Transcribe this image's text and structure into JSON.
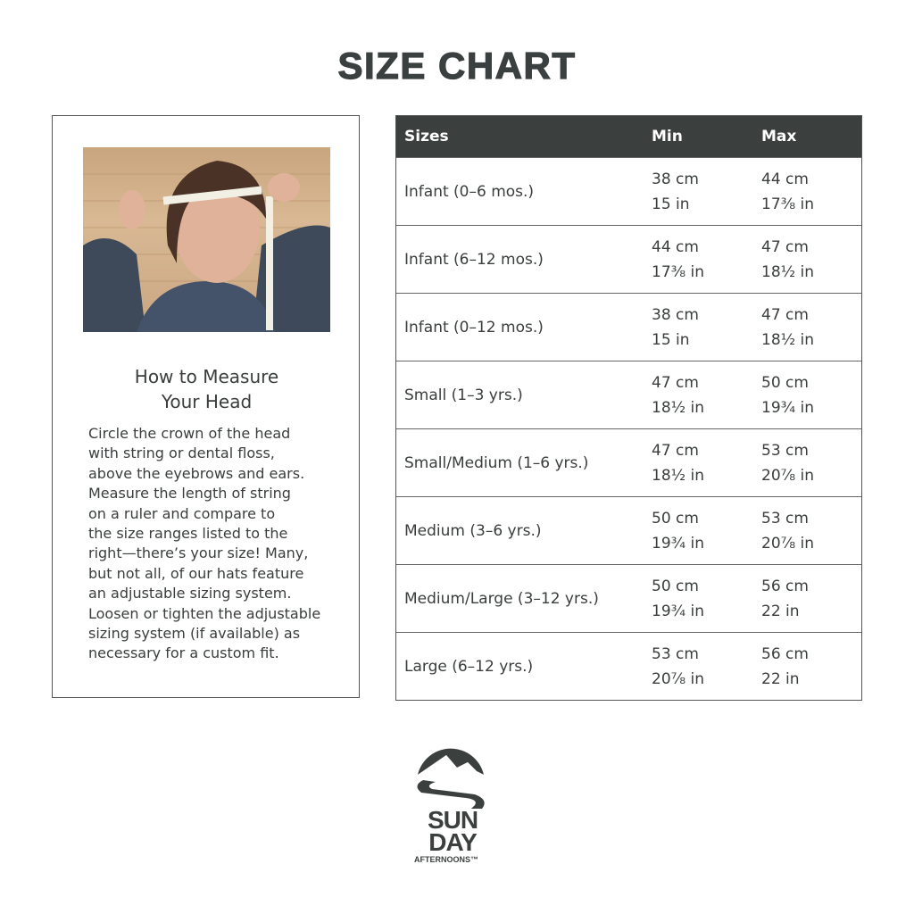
{
  "title": "SIZE CHART",
  "guide": {
    "heading_line1": "How to Measure",
    "heading_line2": "Your Head",
    "lines": [
      "Circle the crown of the head",
      "with string or dental floss,",
      "above the eyebrows and ears.",
      "Measure the length of string",
      "on a ruler and compare to",
      "the size ranges listed to the",
      "right—there’s your size! Many,",
      "but not all, of our hats feature",
      "an adjustable sizing system.",
      "Loosen or tighten the adjustable",
      "sizing system (if available) as",
      "necessary for a custom fit."
    ]
  },
  "table": {
    "headers": [
      "Sizes",
      "Min",
      "Max"
    ],
    "rows": [
      {
        "size": "Infant (0–6 mos.)",
        "min_cm": "38 cm",
        "min_in": "15 in",
        "max_cm": "44 cm",
        "max_in": "17⅜ in"
      },
      {
        "size": "Infant (6–12 mos.)",
        "min_cm": "44 cm",
        "min_in": "17⅜ in",
        "max_cm": "47 cm",
        "max_in": "18½ in"
      },
      {
        "size": "Infant (0–12 mos.)",
        "min_cm": "38 cm",
        "min_in": "15 in",
        "max_cm": "47 cm",
        "max_in": "18½ in"
      },
      {
        "size": "Small (1–3 yrs.)",
        "min_cm": "47 cm",
        "min_in": "18½ in",
        "max_cm": "50 cm",
        "max_in": "19¾ in"
      },
      {
        "size": "Small/Medium (1–6 yrs.)",
        "min_cm": "47 cm",
        "min_in": "18½ in",
        "max_cm": "53 cm",
        "max_in": "20⅞ in"
      },
      {
        "size": "Medium (3–6 yrs.)",
        "min_cm": "50 cm",
        "min_in": "19¾ in",
        "max_cm": "53 cm",
        "max_in": "20⅞ in"
      },
      {
        "size": "Medium/Large (3–12 yrs.)",
        "min_cm": "50 cm",
        "min_in": "19¾ in",
        "max_cm": "56 cm",
        "max_in": "22 in"
      },
      {
        "size": "Large (6–12 yrs.)",
        "min_cm": "53 cm",
        "min_in": "20⅞ in",
        "max_cm": "56 cm",
        "max_in": "22 in"
      }
    ]
  },
  "logo": {
    "line1": "SUN",
    "line2": "DAY",
    "line3": "AFTERNOONS™"
  },
  "colors": {
    "header_bg": "#3b403f",
    "text": "#3a3d3d"
  }
}
